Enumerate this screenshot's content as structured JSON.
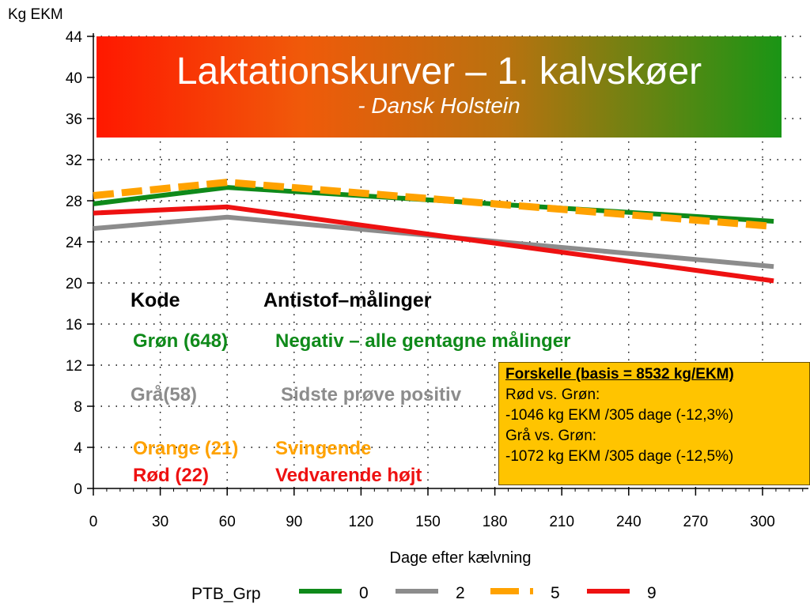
{
  "title": "Laktationskurver – 1. kalvskøer",
  "subtitle": "- Dansk Holstein",
  "colors": {
    "green": "#0f8a1a",
    "gray": "#8c8c8c",
    "orange": "#ffa200",
    "red": "#ee1111",
    "title_bg_left": "#ff1800",
    "title_bg_right": "#1a9515",
    "box_bg": "#ffc400"
  },
  "code_table": {
    "header": {
      "code": "Kode",
      "meaning": "Antistof–målinger"
    },
    "rows": [
      {
        "code": "Grøn (648)",
        "meaning": "Negativ – alle gentagne målinger",
        "color": "#0f8a1a"
      },
      {
        "code": "Grå(58)",
        "meaning": "Sidste prøve positiv",
        "color": "#8c8c8c"
      },
      {
        "code": "Orange (21)",
        "meaning": "Svingende",
        "color": "#ffa200"
      },
      {
        "code": "Rød (22)",
        "meaning": "Vedvarende højt",
        "color": "#ee1111"
      }
    ]
  },
  "info_box": {
    "heading": "Forskelle (basis = 8532 kg/EKM)",
    "lines": [
      "Rød vs. Grøn:",
      "-1046 kg EKM /305 dage (-12,3%)",
      "Grå vs. Grøn:",
      "-1072 kg EKM /305 dage (-12,5%)"
    ]
  },
  "chart_data": {
    "type": "line",
    "ylabel": "Kg EKM",
    "xlabel": "Dage efter kælvning",
    "x_ticks": [
      0,
      30,
      60,
      90,
      120,
      150,
      180,
      210,
      240,
      270,
      300
    ],
    "y_ticks": [
      0,
      4,
      8,
      12,
      16,
      20,
      24,
      28,
      32,
      36,
      40,
      44
    ],
    "xlim": [
      0,
      305
    ],
    "ylim": [
      0,
      44
    ],
    "grid": true,
    "legend_title": "PTB_Grp",
    "legend_position": "bottom",
    "series": [
      {
        "name": "0",
        "color": "#0f8a1a",
        "style": "solid",
        "x": [
          0,
          60,
          305
        ],
        "y": [
          27.7,
          29.3,
          26.0
        ]
      },
      {
        "name": "2",
        "color": "#8c8c8c",
        "style": "solid",
        "x": [
          0,
          60,
          305
        ],
        "y": [
          25.3,
          26.4,
          21.6
        ]
      },
      {
        "name": "5",
        "color": "#ffa200",
        "style": "dashed",
        "x": [
          0,
          60,
          305
        ],
        "y": [
          28.5,
          29.8,
          25.5
        ]
      },
      {
        "name": "9",
        "color": "#ee1111",
        "style": "solid",
        "x": [
          0,
          60,
          305
        ],
        "y": [
          26.8,
          27.4,
          20.2
        ]
      }
    ]
  }
}
